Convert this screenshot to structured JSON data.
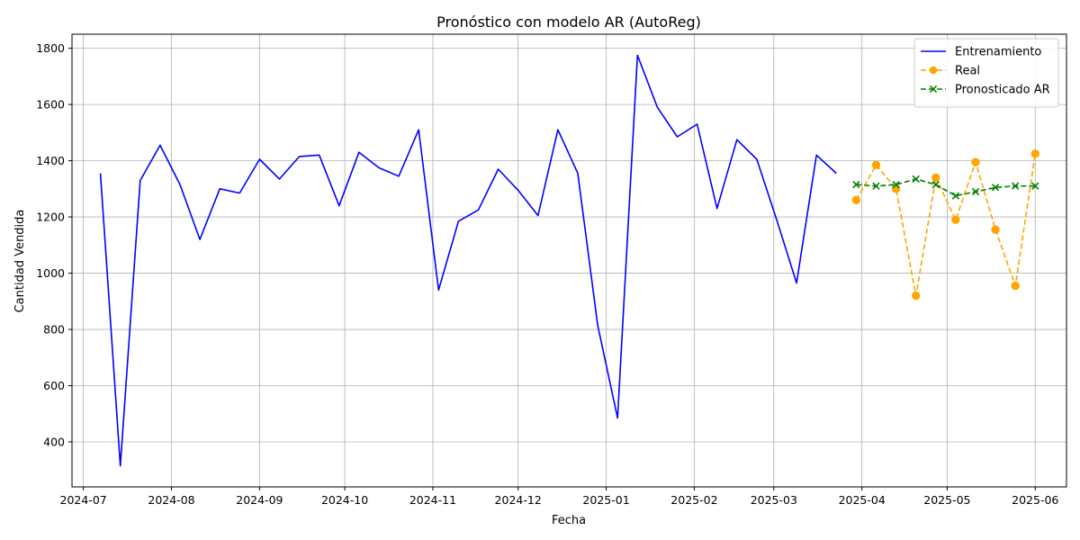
{
  "chart_data": {
    "type": "line",
    "title": "Pronóstico con modelo AR (AutoReg)",
    "xlabel": "Fecha",
    "ylabel": "Cantidad Vendida",
    "xlim": [
      "2024-06-27",
      "2025-06-12"
    ],
    "ylim": [
      240,
      1850
    ],
    "x_ticks": [
      "2024-07",
      "2024-08",
      "2024-09",
      "2024-10",
      "2024-11",
      "2024-12",
      "2025-01",
      "2025-02",
      "2025-03",
      "2025-04",
      "2025-05",
      "2025-06"
    ],
    "y_ticks": [
      400,
      600,
      800,
      1000,
      1200,
      1400,
      1600,
      1800
    ],
    "grid": true,
    "legend_position": "top-right",
    "series": [
      {
        "name": "Entrenamiento",
        "color": "#0000ff",
        "style": "solid",
        "marker": "none",
        "x": [
          "2024-07-07",
          "2024-07-14",
          "2024-07-21",
          "2024-07-28",
          "2024-08-04",
          "2024-08-11",
          "2024-08-18",
          "2024-08-25",
          "2024-09-01",
          "2024-09-08",
          "2024-09-15",
          "2024-09-22",
          "2024-09-29",
          "2024-10-06",
          "2024-10-13",
          "2024-10-20",
          "2024-10-27",
          "2024-11-03",
          "2024-11-10",
          "2024-11-17",
          "2024-11-24",
          "2024-12-01",
          "2024-12-08",
          "2024-12-15",
          "2024-12-22",
          "2024-12-29",
          "2025-01-05",
          "2025-01-12",
          "2025-01-19",
          "2025-01-26",
          "2025-02-02",
          "2025-02-09",
          "2025-02-16",
          "2025-02-23",
          "2025-03-02",
          "2025-03-09",
          "2025-03-16",
          "2025-03-23"
        ],
        "values": [
          1355,
          315,
          1330,
          1455,
          1315,
          1120,
          1300,
          1285,
          1405,
          1335,
          1415,
          1420,
          1240,
          1430,
          1375,
          1345,
          1510,
          940,
          1185,
          1225,
          1370,
          1295,
          1205,
          1510,
          1355,
          815,
          485,
          1775,
          1590,
          1485,
          1530,
          1230,
          1475,
          1405,
          1190,
          965,
          1420,
          1355
        ]
      },
      {
        "name": "Real",
        "color": "#ffa500",
        "style": "dashed",
        "marker": "circle",
        "x": [
          "2025-03-30",
          "2025-04-06",
          "2025-04-13",
          "2025-04-20",
          "2025-04-27",
          "2025-05-04",
          "2025-05-11",
          "2025-05-18",
          "2025-05-25",
          "2025-06-01"
        ],
        "values": [
          1260,
          1385,
          1300,
          920,
          1340,
          1190,
          1395,
          1155,
          955,
          1425
        ]
      },
      {
        "name": "Pronosticado AR",
        "color": "#008000",
        "style": "dashed",
        "marker": "x",
        "x": [
          "2025-03-30",
          "2025-04-06",
          "2025-04-13",
          "2025-04-20",
          "2025-04-27",
          "2025-05-04",
          "2025-05-11",
          "2025-05-18",
          "2025-05-25",
          "2025-06-01"
        ],
        "values": [
          1315,
          1310,
          1315,
          1335,
          1315,
          1275,
          1290,
          1305,
          1310,
          1310
        ]
      }
    ]
  }
}
